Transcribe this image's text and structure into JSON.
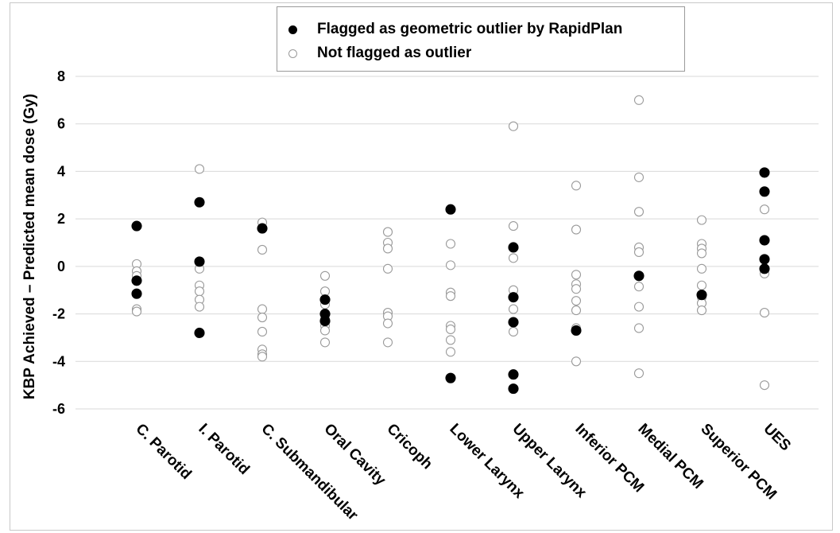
{
  "chart_data": {
    "type": "scatter",
    "categories": [
      "C. Parotid",
      "I. Parotid",
      "C. Submandibular",
      "Oral Cavity",
      "Cricoph",
      "Lower Larynx",
      "Upper Larynx",
      "Inferior PCM",
      "Medial PCM",
      "Superior PCM",
      "UES"
    ],
    "ylabel": "KBP Achieved – Predicted mean dose (Gy)",
    "xlabel": "",
    "ylim": [
      -6,
      8
    ],
    "yticks": [
      -6,
      -4,
      -2,
      0,
      2,
      4,
      6,
      8
    ],
    "grid": "horizontal",
    "legend_position": "top-center",
    "legend": [
      "Flagged as geometric outlier by RapidPlan",
      "Not flagged as outlier"
    ],
    "series": [
      {
        "name": "Flagged as geometric outlier by RapidPlan",
        "marker": "filled-circle",
        "color": "#000000",
        "values": [
          [
            1.7,
            -0.6,
            -1.15
          ],
          [
            2.7,
            0.2,
            -2.8
          ],
          [
            1.6
          ],
          [
            -1.4,
            -2.0,
            -2.3
          ],
          [],
          [
            2.4,
            -4.7
          ],
          [
            0.8,
            -1.3,
            -2.35,
            -4.55,
            -5.15
          ],
          [
            -2.7
          ],
          [
            -0.4
          ],
          [
            -1.2
          ],
          [
            3.95,
            3.15,
            1.1,
            0.3,
            -0.1
          ]
        ]
      },
      {
        "name": "Not flagged as outlier",
        "marker": "hollow-circle",
        "color": "#9a9a9a",
        "values": [
          [
            0.1,
            -0.2,
            -0.4,
            -1.8,
            -1.9
          ],
          [
            4.1,
            -0.1,
            -0.8,
            -1.05,
            -1.4,
            -1.7
          ],
          [
            1.85,
            0.7,
            -1.8,
            -2.15,
            -2.75,
            -3.5,
            -3.7,
            -3.8
          ],
          [
            -0.4,
            -1.05,
            -1.6,
            -2.2,
            -2.5,
            -2.7,
            -3.2
          ],
          [
            1.45,
            1.0,
            0.75,
            -0.1,
            -1.95,
            -2.1,
            -2.4,
            -3.2
          ],
          [
            0.95,
            0.05,
            -1.1,
            -1.25,
            -2.5,
            -2.65,
            -3.1,
            -3.6
          ],
          [
            5.9,
            1.7,
            0.35,
            -1.0,
            -1.8,
            -2.75
          ],
          [
            3.4,
            1.55,
            -0.35,
            -0.75,
            -0.95,
            -1.45,
            -1.85,
            -2.6,
            -4.0
          ],
          [
            7.0,
            3.75,
            2.3,
            0.8,
            0.6,
            -0.85,
            -1.7,
            -2.6,
            -4.5
          ],
          [
            1.95,
            0.95,
            0.75,
            0.55,
            -0.1,
            -0.8,
            -1.3,
            -1.55,
            -1.85
          ],
          [
            2.4,
            -0.3,
            -1.95,
            -5.0
          ]
        ]
      }
    ]
  }
}
